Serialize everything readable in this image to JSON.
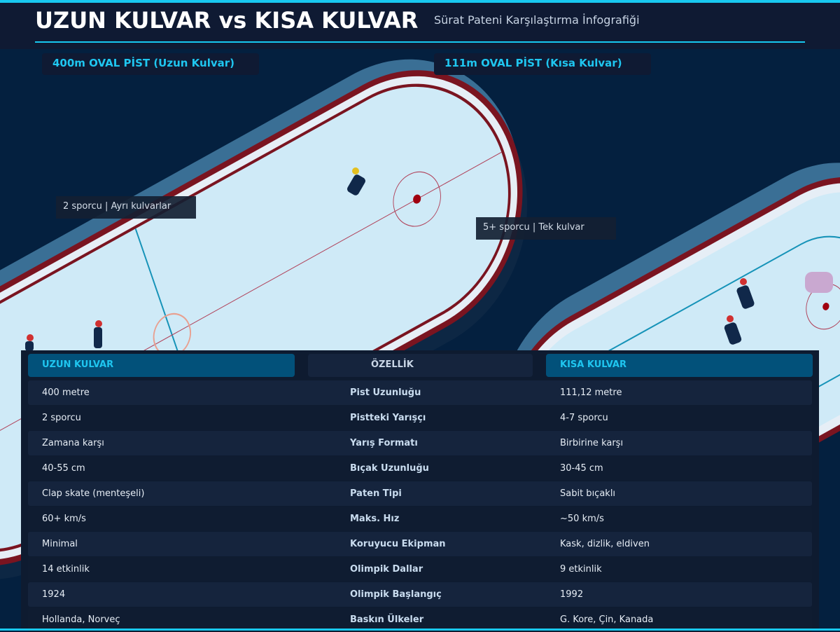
{
  "header": {
    "title": "UZUN KULVAR vs KISA KULVAR",
    "subtitle": "Sürat Pateni Karşılaştırma İnfografiği"
  },
  "sections": {
    "long": "400m OVAL PİST (Uzun Kulvar)",
    "short": "111m OVAL PİST (Kısa Kulvar)"
  },
  "notes": {
    "long": "2 sporcu | Ayrı kulvarlar",
    "short": "5+ sporcu | Tek kulvar"
  },
  "table": {
    "headers": [
      "UZUN KULVAR",
      "ÖZELLİK",
      "KISA KULVAR"
    ],
    "rows": [
      [
        "400 metre",
        "Pist Uzunluğu",
        "111,12 metre"
      ],
      [
        "2 sporcu",
        "Pistteki Yarışçı",
        "4-7 sporcu"
      ],
      [
        "Zamana karşı",
        "Yarış Formatı",
        "Birbirine karşı"
      ],
      [
        "40-55 cm",
        "Bıçak Uzunluğu",
        "30-45 cm"
      ],
      [
        "Clap skate (menteşeli)",
        "Paten Tipi",
        "Sabit bıçaklı"
      ],
      [
        "60+ km/s",
        "Maks. Hız",
        "~50 km/s"
      ],
      [
        "Minimal",
        "Koruyucu Ekipman",
        "Kask, dizlik, eldiven"
      ],
      [
        "14 etkinlik",
        "Olimpik Dallar",
        "9 etkinlik"
      ],
      [
        "1924",
        "Olimpik Başlangıç",
        "1992"
      ],
      [
        "Hollanda, Norveç",
        "Baskın Ülkeler",
        "G. Kore, Çin, Kanada"
      ]
    ]
  },
  "colors": {
    "accent": "#18c8f0",
    "header_bg": "#0f1a33",
    "col_header": "#02517a",
    "row_a": "#15243d",
    "row_b": "#0f1c31"
  }
}
